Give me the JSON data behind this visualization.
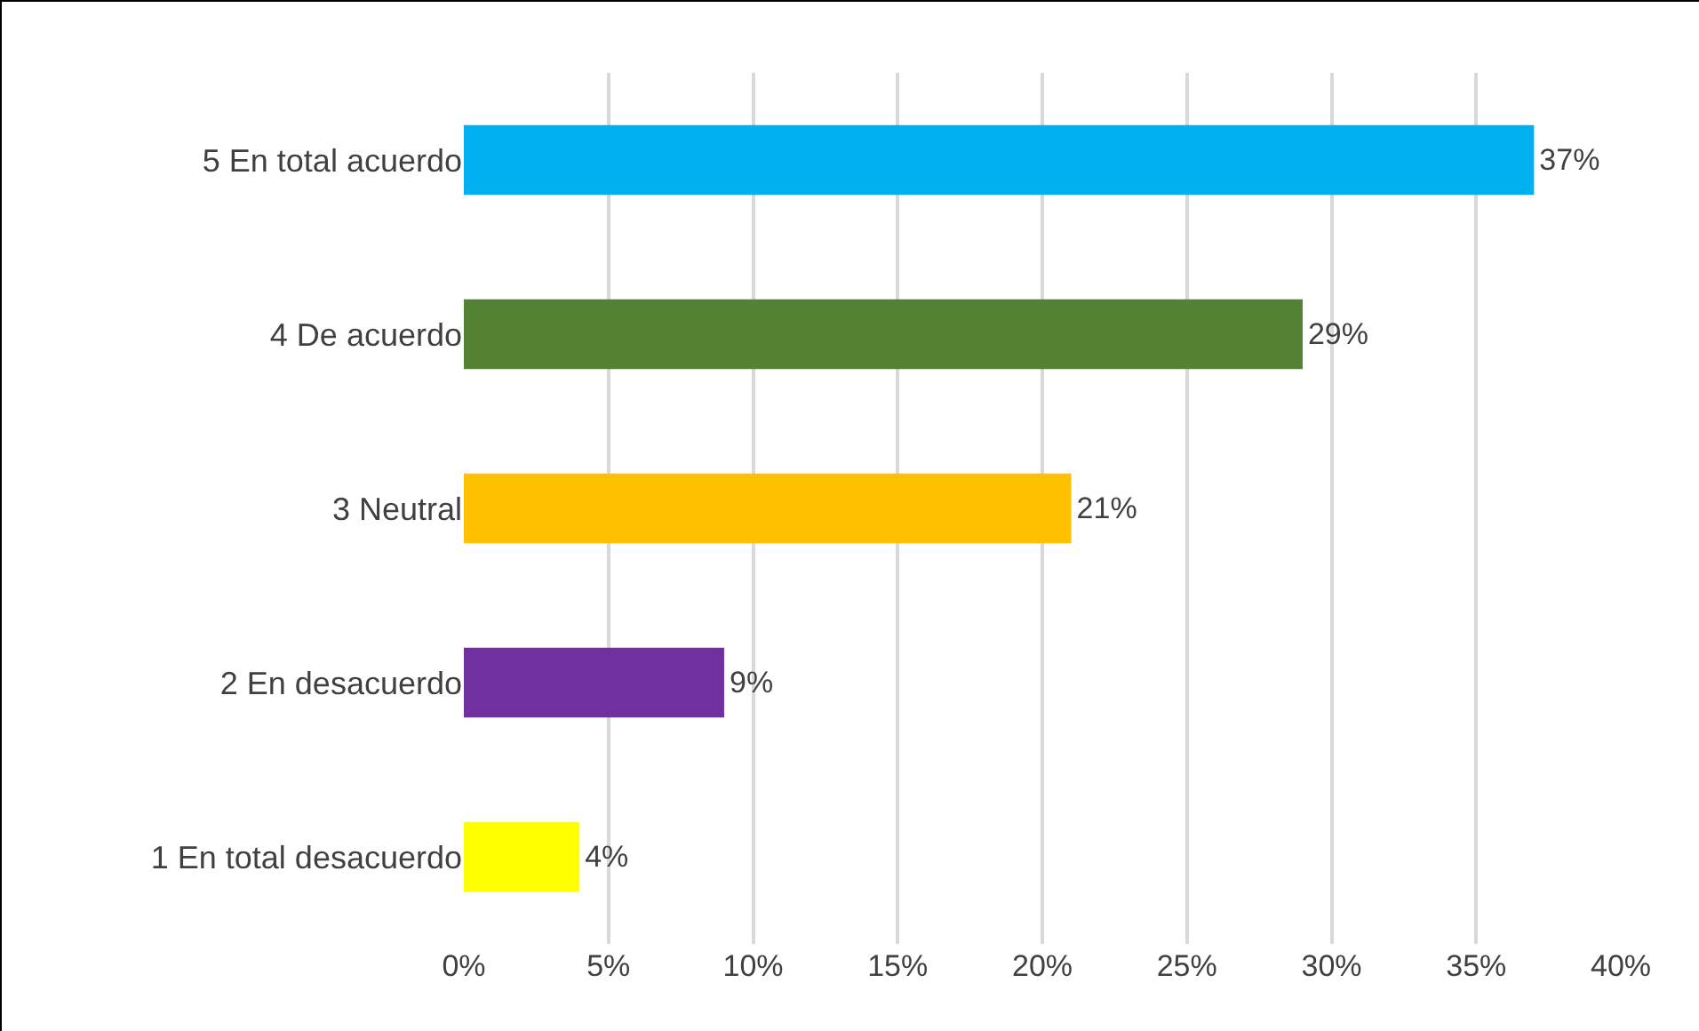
{
  "chart_data": {
    "type": "bar",
    "orientation": "horizontal",
    "categories": [
      "5 En total acuerdo",
      "4 De acuerdo",
      "3 Neutral",
      "2 En desacuerdo",
      "1 En total desacuerdo"
    ],
    "values": [
      37,
      29,
      21,
      9,
      4
    ],
    "colors": [
      "#00b0f0",
      "#548235",
      "#ffc000",
      "#7030a0",
      "#ffff00"
    ],
    "value_labels": [
      "37%",
      "29%",
      "21%",
      "9%",
      "4%"
    ],
    "xlim": [
      0,
      40
    ],
    "xticks": [
      {
        "value": 0,
        "label": "0%"
      },
      {
        "value": 5,
        "label": "5%"
      },
      {
        "value": 10,
        "label": "10%"
      },
      {
        "value": 15,
        "label": "15%"
      },
      {
        "value": 20,
        "label": "20%"
      },
      {
        "value": 25,
        "label": "25%"
      },
      {
        "value": 30,
        "label": "30%"
      },
      {
        "value": 35,
        "label": "35%"
      },
      {
        "value": 40,
        "label": "40%"
      }
    ],
    "grid": "x"
  }
}
